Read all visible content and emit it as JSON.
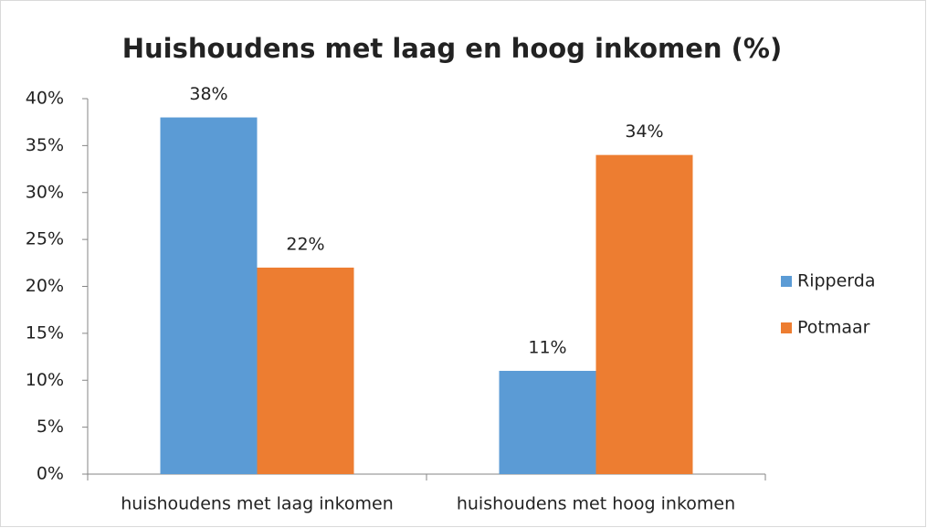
{
  "chart_data": {
    "type": "bar",
    "title": "Huishoudens met laag en hoog inkomen (%)",
    "categories": [
      "huishoudens met laag inkomen",
      "huishoudens met hoog inkomen"
    ],
    "series": [
      {
        "name": "Ripperda",
        "color": "#5b9bd5",
        "values": [
          38,
          11
        ],
        "value_labels": [
          "38%",
          "11%"
        ]
      },
      {
        "name": "Potmaar",
        "color": "#ed7d31",
        "values": [
          22,
          34
        ],
        "value_labels": [
          "22%",
          "34%"
        ]
      }
    ],
    "ylim": [
      0,
      40
    ],
    "yticks": [
      {
        "value": 0,
        "label": "0%"
      },
      {
        "value": 5,
        "label": "5%"
      },
      {
        "value": 10,
        "label": "10%"
      },
      {
        "value": 15,
        "label": "15%"
      },
      {
        "value": 20,
        "label": "20%"
      },
      {
        "value": 25,
        "label": "25%"
      },
      {
        "value": 30,
        "label": "30%"
      },
      {
        "value": 35,
        "label": "35%"
      },
      {
        "value": 40,
        "label": "40%"
      }
    ],
    "grid": false,
    "legend": "right"
  }
}
